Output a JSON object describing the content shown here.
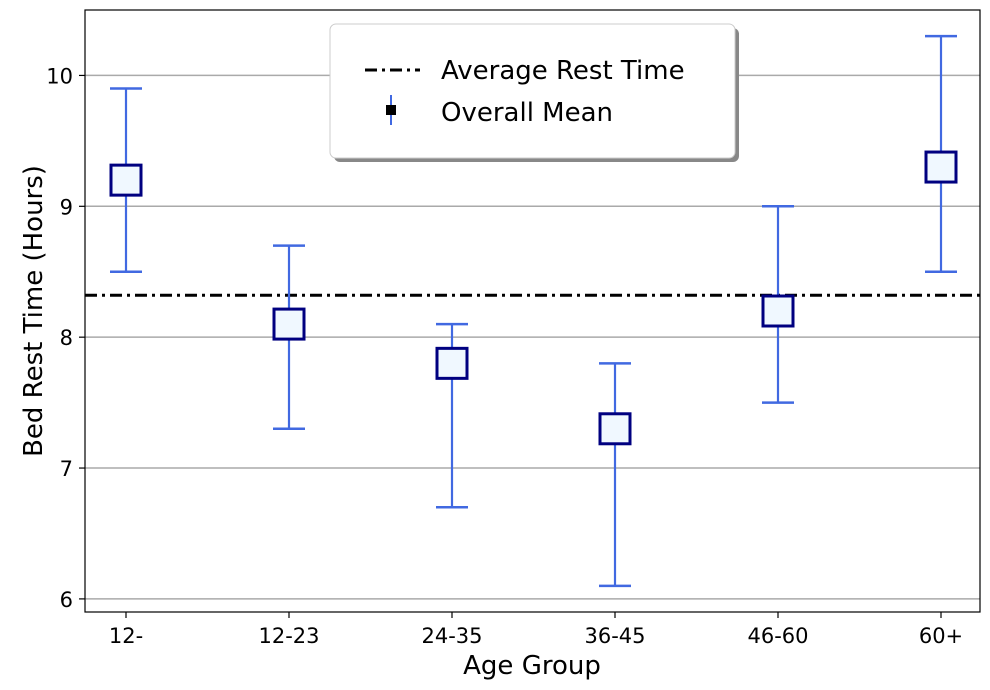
{
  "chart_data": {
    "type": "errorbar",
    "title": "",
    "xlabel": "Age Group",
    "ylabel": "Bed Rest Time (Hours)",
    "categories": [
      "12-",
      "12-23",
      "24-35",
      "36-45",
      "46-60",
      "60+"
    ],
    "series": [
      {
        "name": "Overall Mean",
        "mean": [
          9.2,
          8.1,
          7.8,
          7.3,
          8.2,
          9.3
        ],
        "lower": [
          8.5,
          7.3,
          6.7,
          6.1,
          7.5,
          8.5
        ],
        "upper": [
          9.9,
          8.7,
          8.1,
          7.8,
          9.0,
          10.3
        ]
      }
    ],
    "reference_line": {
      "name": "Average Rest Time",
      "value": 8.32
    },
    "ylim": [
      5.9,
      10.5
    ],
    "yticks": [
      6,
      7,
      8,
      9,
      10
    ],
    "grid": "horizontal",
    "legend_position": "top-center",
    "colors": {
      "errorbar": "#4169E1",
      "marker_edge": "#000080",
      "marker_fill": "#F0F8FF",
      "reference_line": "#000000",
      "grid": "#aaaaaa"
    }
  }
}
